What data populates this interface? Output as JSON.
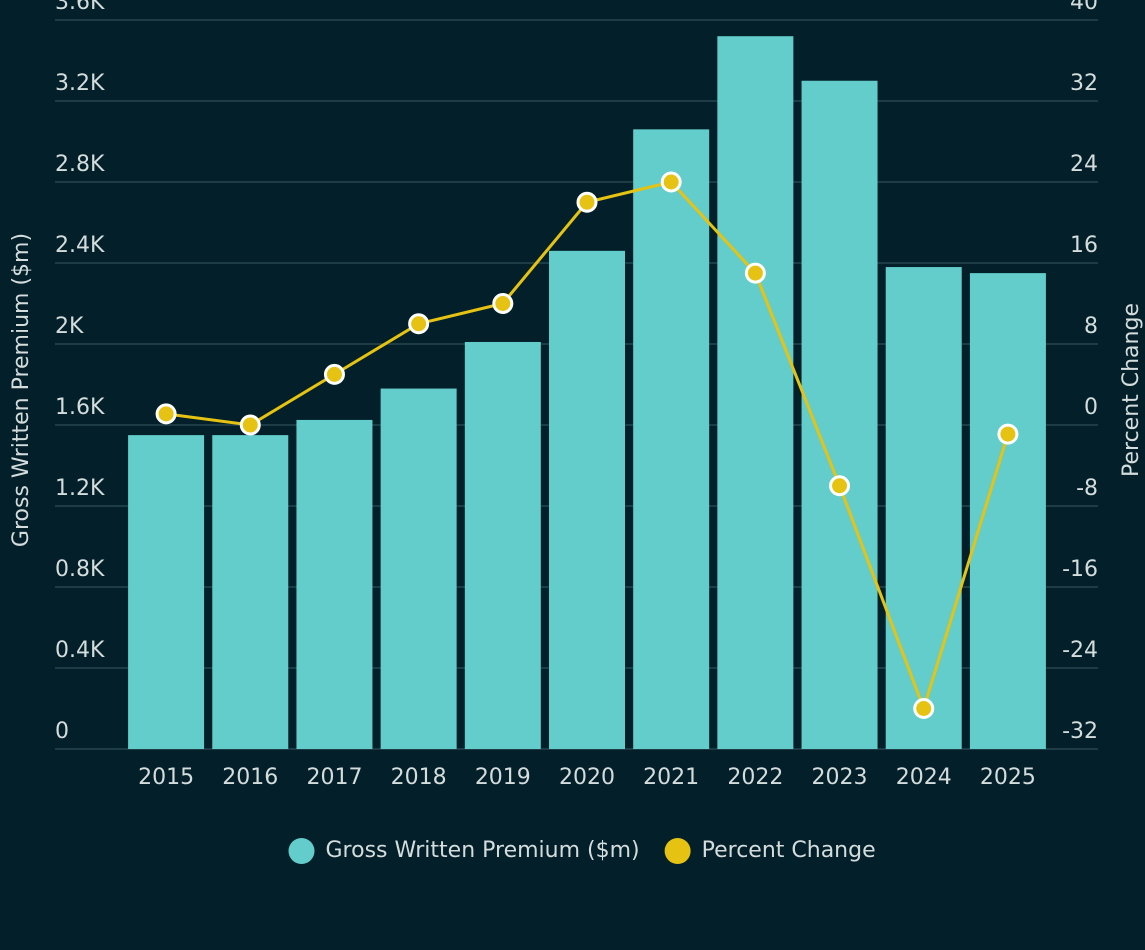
{
  "chart_data": {
    "type": "bar_line",
    "categories": [
      "2015",
      "2016",
      "2017",
      "2018",
      "2019",
      "2020",
      "2021",
      "2022",
      "2023",
      "2024",
      "2025"
    ],
    "series": [
      {
        "name": "Gross Written Premium ($m)",
        "color": "#62cdcb",
        "type": "bar",
        "values": [
          1550,
          1550,
          1625,
          1780,
          2010,
          2460,
          3060,
          3520,
          3300,
          2380,
          2350
        ]
      },
      {
        "name": "Percent Change",
        "color": "#e6c312",
        "type": "line",
        "axis": "y2",
        "values": [
          1.1,
          0,
          5,
          10,
          12,
          22,
          24,
          15,
          -6,
          -28,
          -0.9
        ]
      }
    ],
    "ylabel": "Gross Written Premium ($m)",
    "y2label": "Percent Change",
    "ylim": [
      0,
      3600
    ],
    "yticks": [
      0,
      {
        "value": 400,
        "label": "0.4K"
      },
      {
        "value": 800,
        "label": "0.8K"
      },
      {
        "value": 1200,
        "label": "1.2K"
      },
      {
        "value": 1600,
        "label": "1.6K"
      },
      {
        "value": 2000,
        "label": "2K"
      },
      {
        "value": 2400,
        "label": "2.4K"
      },
      {
        "value": 2800,
        "label": "2.8K"
      },
      {
        "value": 3200,
        "label": "3.2K"
      },
      {
        "value": 3600,
        "label": "3.6K"
      }
    ],
    "y2lim": [
      -32,
      40
    ],
    "y2ticks": [
      -32,
      -24,
      -16,
      -8,
      0,
      8,
      16,
      24,
      32,
      40
    ],
    "grid": true,
    "legend": "bottom"
  }
}
